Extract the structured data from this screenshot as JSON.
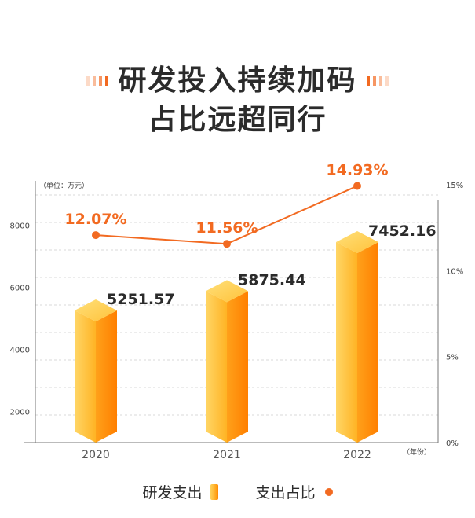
{
  "title_lines": [
    "研发投入持续加码",
    "占比远超同行"
  ],
  "chart_data": {
    "type": "bar+line",
    "categories": [
      "2020",
      "2021",
      "2022"
    ],
    "bar_series": {
      "name": "研发支出",
      "values": [
        5251.57,
        5875.44,
        7452.16
      ],
      "value_labels": [
        "5251.57",
        "5875.44",
        "7452.16"
      ]
    },
    "line_series": {
      "name": "支出占比",
      "values": [
        12.07,
        11.56,
        14.93
      ],
      "value_labels": [
        "12.07%",
        "11.56%",
        "14.93%"
      ]
    },
    "y_left": {
      "unit_label": "（单位：万元）",
      "ticks": [
        2000,
        4000,
        6000,
        8000
      ],
      "tick_labels": [
        "2000",
        "4000",
        "6000",
        "8000"
      ],
      "ylim": [
        1000,
        9300
      ]
    },
    "y_right": {
      "ticks": [
        0,
        5,
        10,
        15
      ],
      "tick_labels": [
        "0%",
        "5%",
        "10%",
        "15%"
      ],
      "ylim": [
        0,
        15
      ]
    },
    "x_unit_label": "（年份）",
    "grid": true,
    "colors": {
      "line": "#f26a21",
      "bar_light": "#ffd25a",
      "bar_mid": "#ffb12a",
      "bar_dark": "#ff8a00",
      "text": "#2b2b2b",
      "axis": "#777777",
      "grid": "#d9d9d9"
    }
  },
  "legend": {
    "bar_label": "研发支出",
    "line_label": "支出占比"
  }
}
